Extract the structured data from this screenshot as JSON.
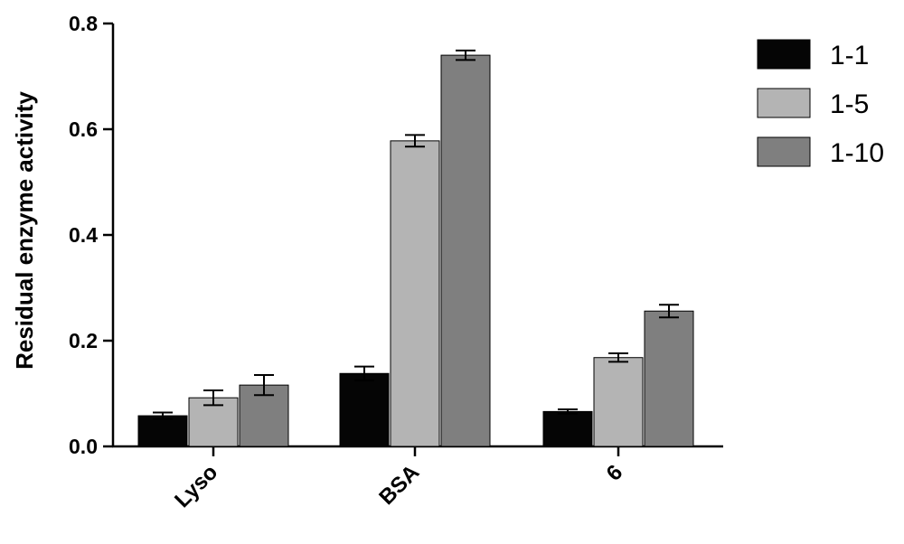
{
  "chart_data": {
    "type": "bar",
    "title": "",
    "xlabel": "",
    "ylabel": "Residual enzyme activity",
    "categories": [
      "Lyso",
      "BSA",
      "6"
    ],
    "ylim": [
      0,
      0.8
    ],
    "yticks": [
      0.0,
      0.2,
      0.4,
      0.6,
      0.8
    ],
    "ytick_labels": [
      "0.0",
      "0.2",
      "0.4",
      "0.6",
      "0.8"
    ],
    "grid": false,
    "legend_position": "top-right",
    "series": [
      {
        "name": "1-1",
        "color": "#050505",
        "values": [
          0.058,
          0.138,
          0.066
        ],
        "errors": [
          0.006,
          0.013,
          0.004
        ]
      },
      {
        "name": "1-5",
        "color": "#b4b4b4",
        "values": [
          0.092,
          0.578,
          0.168
        ],
        "errors": [
          0.014,
          0.011,
          0.008
        ]
      },
      {
        "name": "1-10",
        "color": "#7f7f7f",
        "values": [
          0.116,
          0.74,
          0.256
        ],
        "errors": [
          0.019,
          0.009,
          0.012
        ]
      }
    ]
  }
}
